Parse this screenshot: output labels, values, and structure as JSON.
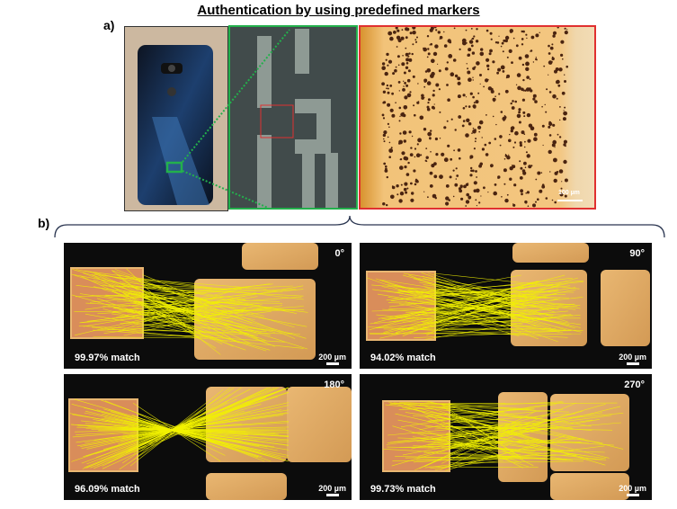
{
  "figure": {
    "title": "Authentication by using predefined markers",
    "label_a": "a)",
    "label_b": "b)"
  },
  "panel_a": {
    "scale_bar_label": "100 µm"
  },
  "panel_b": {
    "panels": [
      {
        "rotation": "0°",
        "match": "99.97% match",
        "scale_bar_label": "200 µm"
      },
      {
        "rotation": "90°",
        "match": "94.02% match",
        "scale_bar_label": "200 µm"
      },
      {
        "rotation": "180°",
        "match": "96.09% match",
        "scale_bar_label": "200 µm"
      },
      {
        "rotation": "270°",
        "match": "99.73% match",
        "scale_bar_label": "200 µm"
      }
    ]
  },
  "colors": {
    "green_frame": "#23b04c",
    "red_frame": "#e03030",
    "match_lines": "#f2f200",
    "substrate": "#e7b267",
    "background_dark": "#0c0c0c"
  }
}
